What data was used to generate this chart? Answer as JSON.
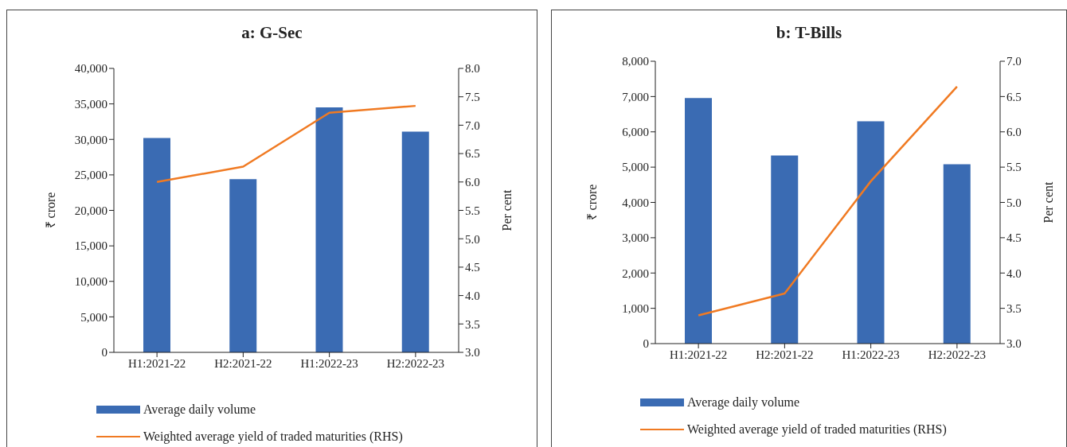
{
  "chart_data": [
    {
      "type": "bar",
      "title": "a: G-Sec",
      "categories": [
        "H1:2021-22",
        "H2:2021-22",
        "H1:2022-23",
        "H2:2022-23"
      ],
      "series": [
        {
          "type": "bar",
          "name": "Average daily volume",
          "color": "#3a6bb3",
          "values": [
            30200,
            24400,
            34500,
            31100
          ]
        },
        {
          "type": "line",
          "name": "Weighted average yield of traded maturities (RHS)",
          "color": "#f07a22",
          "axis": "y2",
          "values": [
            6.0,
            6.27,
            7.22,
            7.34
          ]
        }
      ],
      "ylabel": "₹ crore",
      "y2label": "Per cent",
      "ylim": [
        0,
        40000
      ],
      "yticks": [
        {
          "value": 0,
          "label": "0"
        },
        {
          "value": 5000,
          "label": "5,000"
        },
        {
          "value": 10000,
          "label": "10,000"
        },
        {
          "value": 15000,
          "label": "15,000"
        },
        {
          "value": 20000,
          "label": "20,000"
        },
        {
          "value": 25000,
          "label": "25,000"
        },
        {
          "value": 30000,
          "label": "30,000"
        },
        {
          "value": 35000,
          "label": "35,000"
        },
        {
          "value": 40000,
          "label": "40,000"
        }
      ],
      "y2lim": [
        3,
        8
      ],
      "y2ticks": [
        {
          "value": 3,
          "label": "3.0"
        },
        {
          "value": 3.5,
          "label": "3.5"
        },
        {
          "value": 4,
          "label": "4.0"
        },
        {
          "value": 4.5,
          "label": "4.5"
        },
        {
          "value": 5,
          "label": "5.0"
        },
        {
          "value": 5.5,
          "label": "5.5"
        },
        {
          "value": 6,
          "label": "6.0"
        },
        {
          "value": 6.5,
          "label": "6.5"
        },
        {
          "value": 7,
          "label": "7.0"
        },
        {
          "value": 7.5,
          "label": "7.5"
        },
        {
          "value": 8,
          "label": "8.0"
        }
      ],
      "legend": "bottom",
      "marker": "none"
    },
    {
      "type": "bar",
      "title": "b: T-Bills",
      "categories": [
        "H1:2021-22",
        "H2:2021-22",
        "H1:2022-23",
        "H2:2022-23"
      ],
      "series": [
        {
          "type": "bar",
          "name": "Average daily volume",
          "color": "#3a6bb3",
          "values": [
            6960,
            5330,
            6300,
            5080
          ]
        },
        {
          "type": "line",
          "name": "Weighted average yield of traded maturities (RHS)",
          "color": "#f07a22",
          "axis": "y2",
          "values": [
            3.4,
            3.71,
            5.3,
            6.64
          ]
        }
      ],
      "ylabel": "₹ crore",
      "y2label": "Per cent",
      "ylim": [
        0,
        8000
      ],
      "yticks": [
        {
          "value": 0,
          "label": "0"
        },
        {
          "value": 1000,
          "label": "1,000"
        },
        {
          "value": 2000,
          "label": "2,000"
        },
        {
          "value": 3000,
          "label": "3,000"
        },
        {
          "value": 4000,
          "label": "4,000"
        },
        {
          "value": 5000,
          "label": "5,000"
        },
        {
          "value": 6000,
          "label": "6,000"
        },
        {
          "value": 7000,
          "label": "7,000"
        },
        {
          "value": 8000,
          "label": "8,000"
        }
      ],
      "y2lim": [
        3,
        7
      ],
      "y2ticks": [
        {
          "value": 3,
          "label": "3.0"
        },
        {
          "value": 3.5,
          "label": "3.5"
        },
        {
          "value": 4,
          "label": "4.0"
        },
        {
          "value": 4.5,
          "label": "4.5"
        },
        {
          "value": 5,
          "label": "5.0"
        },
        {
          "value": 5.5,
          "label": "5.5"
        },
        {
          "value": 6,
          "label": "6.0"
        },
        {
          "value": 6.5,
          "label": "6.5"
        },
        {
          "value": 7,
          "label": "7.0"
        }
      ],
      "legend": "bottom",
      "marker": "none"
    }
  ]
}
